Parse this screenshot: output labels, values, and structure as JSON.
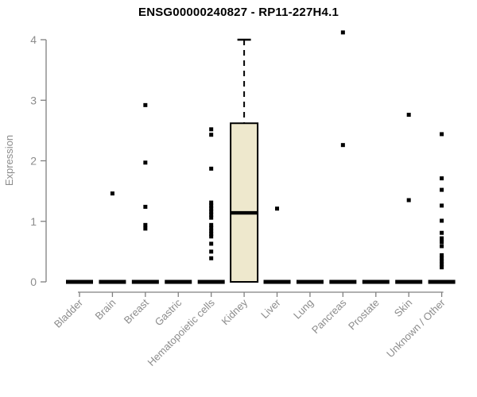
{
  "chart_data": {
    "type": "boxplot",
    "title": "ENSG00000240827 - RP11-227H4.1",
    "ylabel": "Expression",
    "xlabel": "",
    "ylim": [
      0,
      4
    ],
    "yticks": [
      0,
      1,
      2,
      3,
      4
    ],
    "grid": false,
    "legend": "none",
    "categories": [
      "Bladder",
      "Brain",
      "Breast",
      "Gastric",
      "Hematopoietic cells",
      "Kidney",
      "Liver",
      "Lung",
      "Pancreas",
      "Prostate",
      "Skin",
      "Unknown / Other"
    ],
    "boxes": [
      {
        "category": "Bladder",
        "median": 0,
        "q1": 0,
        "q3": 0,
        "whisker_low": 0,
        "whisker_high": 0,
        "outliers": []
      },
      {
        "category": "Brain",
        "median": 0,
        "q1": 0,
        "q3": 0,
        "whisker_low": 0,
        "whisker_high": 0,
        "outliers": [
          1.46
        ]
      },
      {
        "category": "Breast",
        "median": 0,
        "q1": 0,
        "q3": 0,
        "whisker_low": 0,
        "whisker_high": 0,
        "outliers": [
          2.92,
          1.97,
          1.24,
          0.94,
          0.88
        ]
      },
      {
        "category": "Gastric",
        "median": 0,
        "q1": 0,
        "q3": 0,
        "whisker_low": 0,
        "whisker_high": 0,
        "outliers": []
      },
      {
        "category": "Hematopoietic cells",
        "median": 0,
        "q1": 0,
        "q3": 0,
        "whisker_low": 0,
        "whisker_high": 0,
        "outliers": [
          2.52,
          2.43,
          1.87,
          1.31,
          1.26,
          1.21,
          1.16,
          1.11,
          1.06,
          0.94,
          0.89,
          0.84,
          0.79,
          0.75,
          0.63,
          0.5,
          0.39
        ]
      },
      {
        "category": "Kidney",
        "median": 1.14,
        "q1": 0,
        "q3": 2.62,
        "whisker_low": 0,
        "whisker_high": 4.0,
        "outliers": []
      },
      {
        "category": "Liver",
        "median": 0,
        "q1": 0,
        "q3": 0,
        "whisker_low": 0,
        "whisker_high": 0,
        "outliers": [
          1.21
        ]
      },
      {
        "category": "Lung",
        "median": 0,
        "q1": 0,
        "q3": 0,
        "whisker_low": 0,
        "whisker_high": 0,
        "outliers": []
      },
      {
        "category": "Pancreas",
        "median": 0,
        "q1": 0,
        "q3": 0,
        "whisker_low": 0,
        "whisker_high": 0,
        "outliers": [
          4.12,
          2.26
        ]
      },
      {
        "category": "Prostate",
        "median": 0,
        "q1": 0,
        "q3": 0,
        "whisker_low": 0,
        "whisker_high": 0,
        "outliers": []
      },
      {
        "category": "Skin",
        "median": 0,
        "q1": 0,
        "q3": 0,
        "whisker_low": 0,
        "whisker_high": 0,
        "outliers": [
          2.76,
          1.35
        ]
      },
      {
        "category": "Unknown / Other",
        "median": 0,
        "q1": 0,
        "q3": 0,
        "whisker_low": 0,
        "whisker_high": 0,
        "outliers": [
          2.44,
          1.71,
          1.52,
          1.26,
          1.01,
          0.81,
          0.72,
          0.66,
          0.59,
          0.44,
          0.39,
          0.34,
          0.29,
          0.24
        ]
      }
    ],
    "colors": {
      "box_fill": "#EEE8CD",
      "box_stroke": "#000000",
      "median": "#000000",
      "outlier": "#000000",
      "axis": "#808080",
      "tick_label": "#8c8c8c",
      "title": "#000000"
    }
  }
}
